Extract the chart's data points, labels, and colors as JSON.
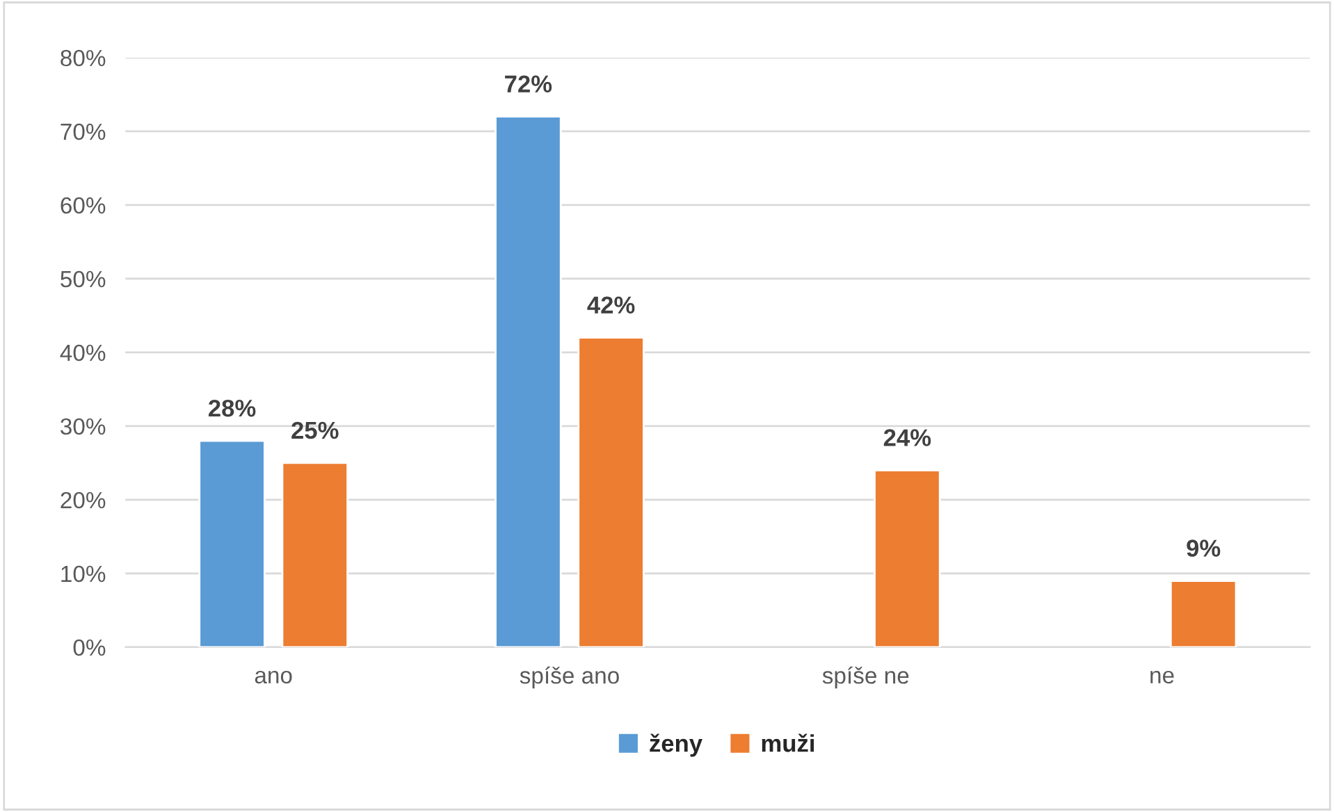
{
  "chart_data": {
    "type": "bar",
    "categories": [
      "ano",
      "spíše ano",
      "spíše ne",
      "ne"
    ],
    "series": [
      {
        "name": "ženy",
        "color": "#5b9bd5",
        "values": [
          28,
          72,
          null,
          null
        ],
        "value_labels": [
          "28%",
          "72%",
          null,
          null
        ]
      },
      {
        "name": "muži",
        "color": "#ed7d31",
        "values": [
          25,
          42,
          24,
          9
        ],
        "value_labels": [
          "25%",
          "42%",
          "24%",
          "9%"
        ]
      }
    ],
    "ylim": [
      0,
      80
    ],
    "yticks": [
      {
        "value": 0,
        "label": "0%"
      },
      {
        "value": 10,
        "label": "10%"
      },
      {
        "value": 20,
        "label": "20%"
      },
      {
        "value": 30,
        "label": "30%"
      },
      {
        "value": 40,
        "label": "40%"
      },
      {
        "value": 50,
        "label": "50%"
      },
      {
        "value": 60,
        "label": "60%"
      },
      {
        "value": 70,
        "label": "70%"
      },
      {
        "value": 80,
        "label": "80%"
      }
    ],
    "grid": "y",
    "legend": "bottom"
  }
}
